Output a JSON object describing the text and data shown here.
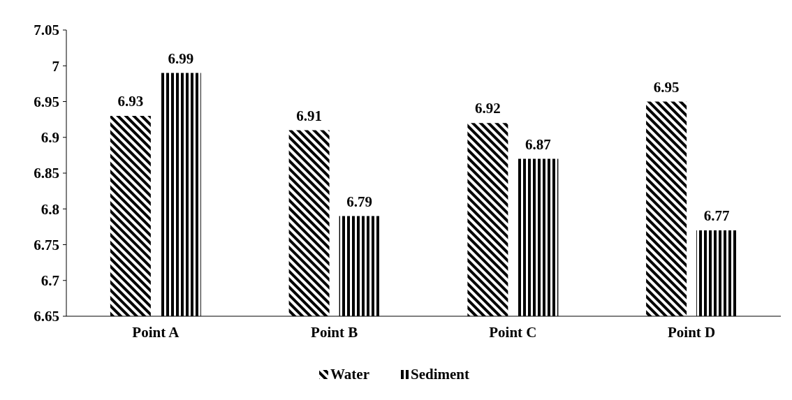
{
  "chart_data": {
    "type": "bar",
    "categories": [
      "Point A",
      "Point B",
      "Point C",
      "Point D"
    ],
    "series": [
      {
        "name": "Water",
        "color": "#000000",
        "values": [
          6.93,
          6.91,
          6.92,
          6.95
        ]
      },
      {
        "name": "Sediment",
        "color": "#000000",
        "values": [
          6.99,
          6.79,
          6.87,
          6.77
        ]
      }
    ],
    "ylim": [
      6.65,
      7.05
    ],
    "yticks": [
      6.65,
      6.7,
      6.75,
      6.8,
      6.85,
      6.9,
      6.95,
      7,
      7.05
    ],
    "data_labels": true,
    "legend": "bottom",
    "grid": false
  }
}
